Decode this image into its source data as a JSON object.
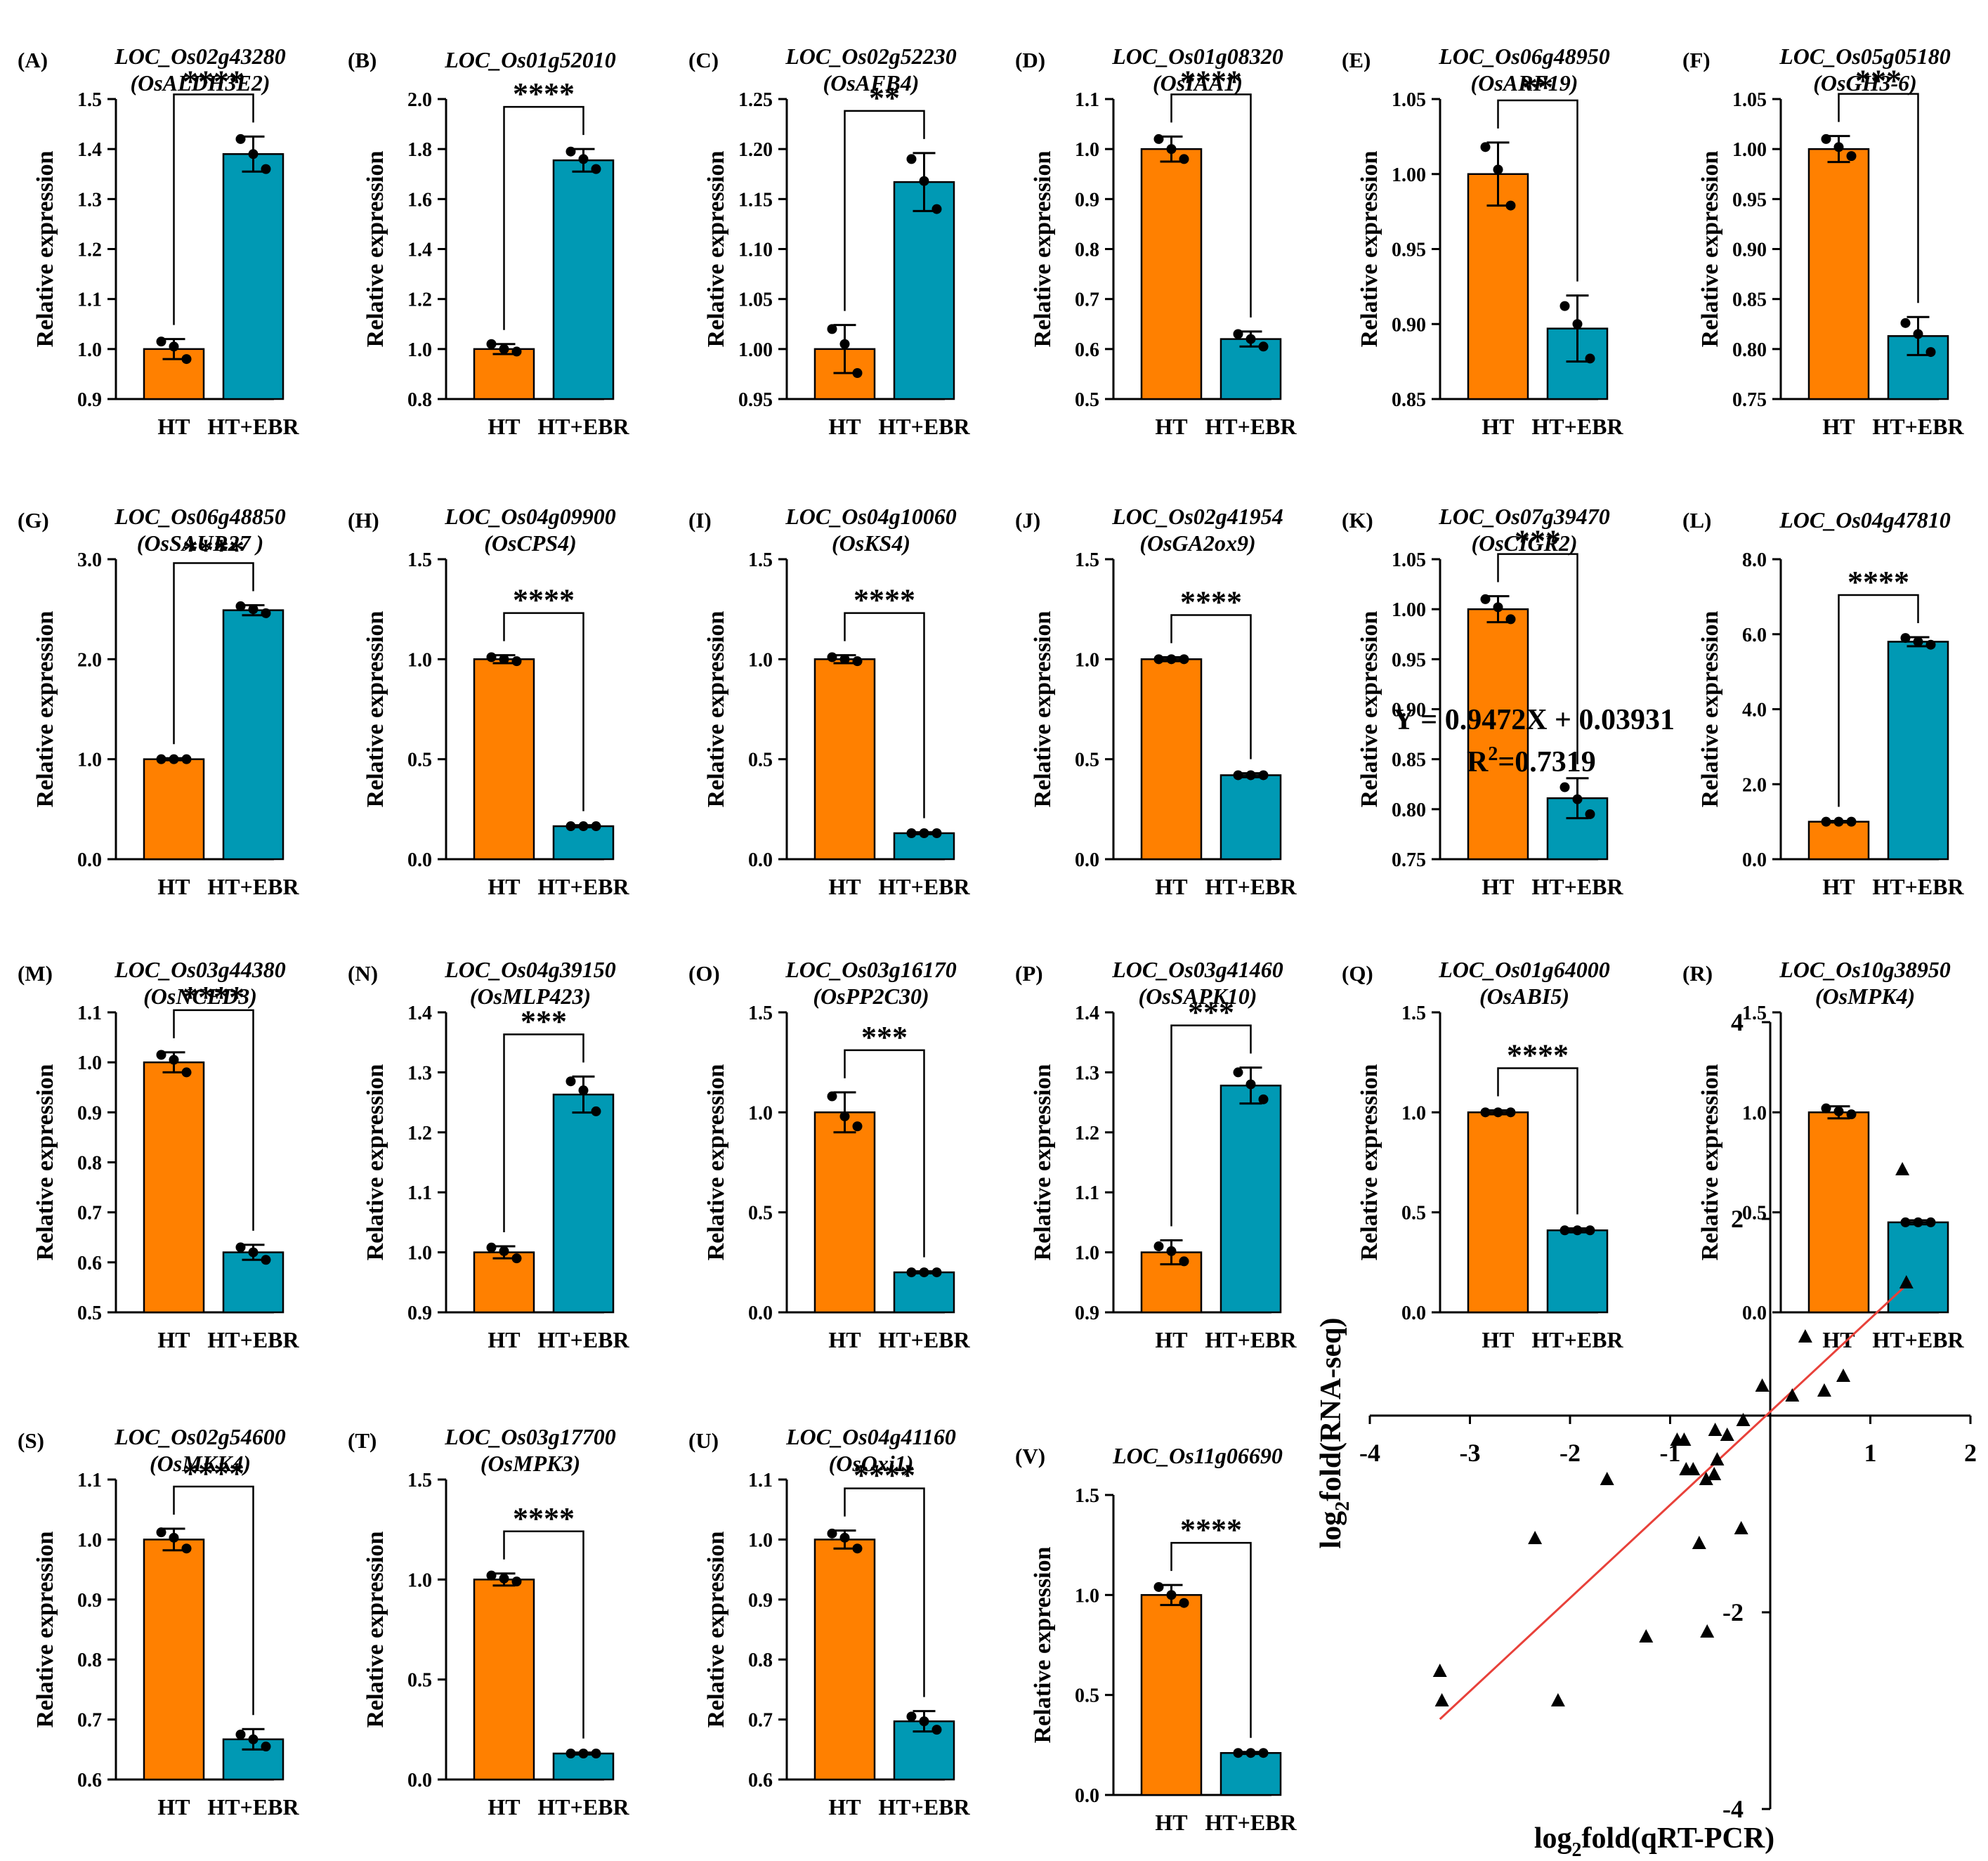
{
  "colors": {
    "ht": "#FF8000",
    "ebr": "#0099B4",
    "fit_line": "#E8413A",
    "axis": "#000000"
  },
  "y_axis_label": "Relative expression",
  "categories": [
    "HT",
    "HT+EBR"
  ],
  "chart_data": [
    {
      "type": "bar",
      "panel": "(A)",
      "gene": "LOC_Os02g43280",
      "alias": "(OsALDH3E2)",
      "categories": [
        "HT",
        "HT+EBR"
      ],
      "values": [
        1.0,
        1.39
      ],
      "errors": [
        0.02,
        0.035
      ],
      "points": [
        [
          1.015,
          1.005,
          0.98
        ],
        [
          1.42,
          1.39,
          1.36
        ]
      ],
      "ylim": [
        0.9,
        1.5
      ],
      "yticks": [
        0.9,
        1.0,
        1.1,
        1.2,
        1.3,
        1.4,
        1.5
      ],
      "tick_labels": [
        "0.9",
        "1.0",
        "1.1",
        "1.2",
        "1.3",
        "1.4",
        "1.5"
      ],
      "significance": "****"
    },
    {
      "type": "bar",
      "panel": "(B)",
      "gene": "LOC_Os01g52010",
      "alias": "",
      "categories": [
        "HT",
        "HT+EBR"
      ],
      "values": [
        1.0,
        1.755
      ],
      "errors": [
        0.02,
        0.045
      ],
      "points": [
        [
          1.02,
          1.0,
          0.99
        ],
        [
          1.79,
          1.76,
          1.72
        ]
      ],
      "ylim": [
        0.8,
        2.0
      ],
      "yticks": [
        0.8,
        1.0,
        1.2,
        1.4,
        1.6,
        1.8,
        2.0
      ],
      "tick_labels": [
        "0.8",
        "1.0",
        "1.2",
        "1.4",
        "1.6",
        "1.8",
        "2.0"
      ],
      "significance": "****"
    },
    {
      "type": "bar",
      "panel": "(C)",
      "gene": "LOC_Os02g52230",
      "alias": "(OsAFB4)",
      "categories": [
        "HT",
        "HT+EBR"
      ],
      "values": [
        1.0,
        1.167
      ],
      "errors": [
        0.024,
        0.029
      ],
      "points": [
        [
          1.02,
          1.005,
          0.976
        ],
        [
          1.19,
          1.168,
          1.14
        ]
      ],
      "ylim": [
        0.95,
        1.25
      ],
      "yticks": [
        0.95,
        1.0,
        1.05,
        1.1,
        1.15,
        1.2,
        1.25
      ],
      "tick_labels": [
        "0.95",
        "1.00",
        "1.05",
        "1.10",
        "1.15",
        "1.20",
        "1.25"
      ],
      "significance": "**"
    },
    {
      "type": "bar",
      "panel": "(D)",
      "gene": "LOC_Os01g08320",
      "alias": "(OsIAA1)",
      "categories": [
        "HT",
        "HT+EBR"
      ],
      "values": [
        1.0,
        0.62
      ],
      "errors": [
        0.025,
        0.015
      ],
      "points": [
        [
          1.02,
          1.0,
          0.98
        ],
        [
          0.63,
          0.62,
          0.605
        ]
      ],
      "ylim": [
        0.5,
        1.1
      ],
      "yticks": [
        0.5,
        0.6,
        0.7,
        0.8,
        0.9,
        1.0,
        1.1
      ],
      "tick_labels": [
        "0.5",
        "0.6",
        "0.7",
        "0.8",
        "0.9",
        "1.0",
        "1.1"
      ],
      "significance": "****"
    },
    {
      "type": "bar",
      "panel": "(E)",
      "gene": "LOC_Os06g48950",
      "alias": "(OsARF19)",
      "categories": [
        "HT",
        "HT+EBR"
      ],
      "values": [
        1.0,
        0.897
      ],
      "errors": [
        0.021,
        0.022
      ],
      "points": [
        [
          1.018,
          1.003,
          0.979
        ],
        [
          0.912,
          0.9,
          0.877
        ]
      ],
      "ylim": [
        0.85,
        1.05
      ],
      "yticks": [
        0.85,
        0.9,
        0.95,
        1.0,
        1.05
      ],
      "tick_labels": [
        "0.85",
        "0.90",
        "0.95",
        "1.00",
        "1.05"
      ],
      "significance": "**"
    },
    {
      "type": "bar",
      "panel": "(F)",
      "gene": "LOC_Os05g05180",
      "alias": "(OsGH3-6)",
      "categories": [
        "HT",
        "HT+EBR"
      ],
      "values": [
        1.0,
        0.813
      ],
      "errors": [
        0.013,
        0.019
      ],
      "points": [
        [
          1.01,
          1.002,
          0.993
        ],
        [
          0.826,
          0.815,
          0.797
        ]
      ],
      "ylim": [
        0.75,
        1.05
      ],
      "yticks": [
        0.75,
        0.8,
        0.85,
        0.9,
        0.95,
        1.0,
        1.05
      ],
      "tick_labels": [
        "0.75",
        "0.80",
        "0.85",
        "0.90",
        "0.95",
        "1.00",
        "1.05"
      ],
      "significance": "***"
    },
    {
      "type": "bar",
      "panel": "(G)",
      "gene": "LOC_Os06g48850",
      "alias": "(OsSAUR27 )",
      "categories": [
        "HT",
        "HT+EBR"
      ],
      "values": [
        1.0,
        2.49
      ],
      "errors": [
        0.01,
        0.05
      ],
      "points": [
        [
          1.0,
          1.0,
          1.0
        ],
        [
          2.53,
          2.5,
          2.46
        ]
      ],
      "ylim": [
        0.0,
        3.0
      ],
      "yticks": [
        0.0,
        1.0,
        2.0,
        3.0
      ],
      "tick_labels": [
        "0.0",
        "1.0",
        "2.0",
        "3.0"
      ],
      "significance": "****"
    },
    {
      "type": "bar",
      "panel": "(H)",
      "gene": "LOC_Os04g09900",
      "alias": "(OsCPS4)",
      "categories": [
        "HT",
        "HT+EBR"
      ],
      "values": [
        1.0,
        0.165
      ],
      "errors": [
        0.02,
        0.005
      ],
      "points": [
        [
          1.01,
          1.0,
          0.99
        ],
        [
          0.165,
          0.165,
          0.165
        ]
      ],
      "ylim": [
        0.0,
        1.5
      ],
      "yticks": [
        0.0,
        0.5,
        1.0,
        1.5
      ],
      "tick_labels": [
        "0.0",
        "0.5",
        "1.0",
        "1.5"
      ],
      "significance": "****"
    },
    {
      "type": "bar",
      "panel": "(I)",
      "gene": "LOC_Os04g10060",
      "alias": "(OsKS4)",
      "categories": [
        "HT",
        "HT+EBR"
      ],
      "values": [
        1.0,
        0.13
      ],
      "errors": [
        0.02,
        0.005
      ],
      "points": [
        [
          1.01,
          1.0,
          0.99
        ],
        [
          0.13,
          0.13,
          0.13
        ]
      ],
      "ylim": [
        0.0,
        1.5
      ],
      "yticks": [
        0.0,
        0.5,
        1.0,
        1.5
      ],
      "tick_labels": [
        "0.0",
        "0.5",
        "1.0",
        "1.5"
      ],
      "significance": "****"
    },
    {
      "type": "bar",
      "panel": "(J)",
      "gene": "LOC_Os02g41954",
      "alias": "(OsGA2ox9)",
      "categories": [
        "HT",
        "HT+EBR"
      ],
      "values": [
        1.0,
        0.42
      ],
      "errors": [
        0.01,
        0.01
      ],
      "points": [
        [
          1.0,
          1.0,
          1.0
        ],
        [
          0.42,
          0.42,
          0.42
        ]
      ],
      "ylim": [
        0.0,
        1.5
      ],
      "yticks": [
        0.0,
        0.5,
        1.0,
        1.5
      ],
      "tick_labels": [
        "0.0",
        "0.5",
        "1.0",
        "1.5"
      ],
      "significance": "****"
    },
    {
      "type": "bar",
      "panel": "(K)",
      "gene": "LOC_Os07g39470",
      "alias": "(OsCIGR2)",
      "categories": [
        "HT",
        "HT+EBR"
      ],
      "values": [
        1.0,
        0.811
      ],
      "errors": [
        0.013,
        0.02
      ],
      "points": [
        [
          1.01,
          1.002,
          0.99
        ],
        [
          0.822,
          0.81,
          0.795
        ]
      ],
      "ylim": [
        0.75,
        1.05
      ],
      "yticks": [
        0.75,
        0.8,
        0.85,
        0.9,
        0.95,
        1.0,
        1.05
      ],
      "tick_labels": [
        "0.75",
        "0.80",
        "0.85",
        "0.90",
        "0.95",
        "1.00",
        "1.05"
      ],
      "significance": "***"
    },
    {
      "type": "bar",
      "panel": "(L)",
      "gene": "LOC_Os04g47810",
      "alias": "",
      "categories": [
        "HT",
        "HT+EBR"
      ],
      "values": [
        1.0,
        5.8
      ],
      "errors": [
        0.02,
        0.12
      ],
      "points": [
        [
          1.0,
          1.0,
          1.0
        ],
        [
          5.9,
          5.8,
          5.72
        ]
      ],
      "ylim": [
        0.0,
        8.0
      ],
      "yticks": [
        0.0,
        2.0,
        4.0,
        6.0,
        8.0
      ],
      "tick_labels": [
        "0.0",
        "2.0",
        "4.0",
        "6.0",
        "8.0"
      ],
      "significance": "****"
    },
    {
      "type": "bar",
      "panel": "(M)",
      "gene": "LOC_Os03g44380",
      "alias": "(OsNCED3)",
      "categories": [
        "HT",
        "HT+EBR"
      ],
      "values": [
        1.0,
        0.62
      ],
      "errors": [
        0.02,
        0.015
      ],
      "points": [
        [
          1.015,
          1.005,
          0.98
        ],
        [
          0.63,
          0.62,
          0.605
        ]
      ],
      "ylim": [
        0.5,
        1.1
      ],
      "yticks": [
        0.5,
        0.6,
        0.7,
        0.8,
        0.9,
        1.0,
        1.1
      ],
      "tick_labels": [
        "0.5",
        "0.6",
        "0.7",
        "0.8",
        "0.9",
        "1.0",
        "1.1"
      ],
      "significance": "****"
    },
    {
      "type": "bar",
      "panel": "(N)",
      "gene": "LOC_Os04g39150",
      "alias": "(OsMLP423)",
      "categories": [
        "HT",
        "HT+EBR"
      ],
      "values": [
        1.0,
        1.263
      ],
      "errors": [
        0.01,
        0.03
      ],
      "points": [
        [
          1.008,
          1.002,
          0.99
        ],
        [
          1.285,
          1.27,
          1.235
        ]
      ],
      "ylim": [
        0.9,
        1.4
      ],
      "yticks": [
        0.9,
        1.0,
        1.1,
        1.2,
        1.3,
        1.4
      ],
      "tick_labels": [
        "0.9",
        "1.0",
        "1.1",
        "1.2",
        "1.3",
        "1.4"
      ],
      "significance": "***"
    },
    {
      "type": "bar",
      "panel": "(O)",
      "gene": "LOC_Os03g16170",
      "alias": "(OsPP2C30)",
      "categories": [
        "HT",
        "HT+EBR"
      ],
      "values": [
        1.0,
        0.2
      ],
      "errors": [
        0.1,
        0.005
      ],
      "points": [
        [
          1.08,
          0.98,
          0.93
        ],
        [
          0.2,
          0.2,
          0.2
        ]
      ],
      "ylim": [
        0.0,
        1.5
      ],
      "yticks": [
        0.0,
        0.5,
        1.0,
        1.5
      ],
      "tick_labels": [
        "0.0",
        "0.5",
        "1.0",
        "1.5"
      ],
      "significance": "***"
    },
    {
      "type": "bar",
      "panel": "(P)",
      "gene": "LOC_Os03g41460",
      "alias": "(OsSAPK10)",
      "categories": [
        "HT",
        "HT+EBR"
      ],
      "values": [
        1.0,
        1.278
      ],
      "errors": [
        0.02,
        0.03
      ],
      "points": [
        [
          1.01,
          1.002,
          0.985
        ],
        [
          1.3,
          1.28,
          1.255
        ]
      ],
      "ylim": [
        0.9,
        1.4
      ],
      "yticks": [
        0.9,
        1.0,
        1.1,
        1.2,
        1.3,
        1.4
      ],
      "tick_labels": [
        "0.9",
        "1.0",
        "1.1",
        "1.2",
        "1.3",
        "1.4"
      ],
      "significance": "***"
    },
    {
      "type": "bar",
      "panel": "(Q)",
      "gene": "LOC_Os01g64000",
      "alias": "(OsABI5)",
      "categories": [
        "HT",
        "HT+EBR"
      ],
      "values": [
        1.0,
        0.41
      ],
      "errors": [
        0.01,
        0.01
      ],
      "points": [
        [
          1.0,
          1.0,
          1.0
        ],
        [
          0.41,
          0.41,
          0.41
        ]
      ],
      "ylim": [
        0.0,
        1.5
      ],
      "yticks": [
        0.0,
        0.5,
        1.0,
        1.5
      ],
      "tick_labels": [
        "0.0",
        "0.5",
        "1.0",
        "1.5"
      ],
      "significance": "****"
    },
    {
      "type": "bar",
      "panel": "(R)",
      "gene": "LOC_Os10g38950",
      "alias": "(OsMPK4)",
      "categories": [
        "HT",
        "HT+EBR"
      ],
      "values": [
        1.0,
        0.45
      ],
      "errors": [
        0.03,
        0.01
      ],
      "points": [
        [
          1.02,
          1.005,
          0.99
        ],
        [
          0.45,
          0.45,
          0.45
        ]
      ],
      "ylim": [
        0.0,
        1.5
      ],
      "yticks": [
        0.0,
        0.5,
        1.0,
        1.5
      ],
      "tick_labels": [
        "0.0",
        "0.5",
        "1.0",
        "1.5"
      ],
      "significance": ""
    },
    {
      "type": "bar",
      "panel": "(S)",
      "gene": "LOC_Os02g54600",
      "alias": "(OsMKK4)",
      "categories": [
        "HT",
        "HT+EBR"
      ],
      "values": [
        1.0,
        0.667
      ],
      "errors": [
        0.018,
        0.017
      ],
      "points": [
        [
          1.012,
          1.003,
          0.985
        ],
        [
          0.675,
          0.667,
          0.655
        ]
      ],
      "ylim": [
        0.6,
        1.1
      ],
      "yticks": [
        0.6,
        0.7,
        0.8,
        0.9,
        1.0,
        1.1
      ],
      "tick_labels": [
        "0.6",
        "0.7",
        "0.8",
        "0.9",
        "1.0",
        "1.1"
      ],
      "significance": "****"
    },
    {
      "type": "bar",
      "panel": "(T)",
      "gene": "LOC_Os03g17700",
      "alias": "(OsMPK3)",
      "categories": [
        "HT",
        "HT+EBR"
      ],
      "values": [
        1.0,
        0.13
      ],
      "errors": [
        0.03,
        0.005
      ],
      "points": [
        [
          1.02,
          1.005,
          0.99
        ],
        [
          0.13,
          0.13,
          0.13
        ]
      ],
      "ylim": [
        0.0,
        1.5
      ],
      "yticks": [
        0.0,
        0.5,
        1.0,
        1.5
      ],
      "tick_labels": [
        "0.0",
        "0.5",
        "1.0",
        "1.5"
      ],
      "significance": "****"
    },
    {
      "type": "bar",
      "panel": "(U)",
      "gene": "LOC_Os04g41160",
      "alias": "(OsOxi1)",
      "categories": [
        "HT",
        "HT+EBR"
      ],
      "values": [
        1.0,
        0.697
      ],
      "errors": [
        0.015,
        0.017
      ],
      "points": [
        [
          1.01,
          1.003,
          0.985
        ],
        [
          0.705,
          0.697,
          0.683
        ]
      ],
      "ylim": [
        0.6,
        1.1
      ],
      "yticks": [
        0.6,
        0.7,
        0.8,
        0.9,
        1.0,
        1.1
      ],
      "tick_labels": [
        "0.6",
        "0.7",
        "0.8",
        "0.9",
        "1.0",
        "1.1"
      ],
      "significance": "****"
    },
    {
      "type": "bar",
      "panel": "(V)",
      "gene": "LOC_Os11g06690",
      "alias": "",
      "categories": [
        "HT",
        "HT+EBR"
      ],
      "values": [
        1.0,
        0.21
      ],
      "errors": [
        0.05,
        0.005
      ],
      "points": [
        [
          1.04,
          1.0,
          0.96
        ],
        [
          0.21,
          0.21,
          0.21
        ]
      ],
      "ylim": [
        0.0,
        1.5
      ],
      "yticks": [
        0.0,
        0.5,
        1.0,
        1.5
      ],
      "tick_labels": [
        "0.0",
        "0.5",
        "1.0",
        "1.5"
      ],
      "significance": "****"
    },
    {
      "type": "scatter",
      "panel": "",
      "equation": "Y = 0.9472X + 0.03931",
      "r2_prefix": "R",
      "r2_sup": "2",
      "r2_suffix": "=0.7319",
      "xlabel_prefix": "log",
      "xlabel_sub": "2",
      "xlabel_suffix": "fold(qRT-PCR)",
      "ylabel_prefix": "log",
      "ylabel_sub": "2",
      "ylabel_suffix": "fold(RNA-seq)",
      "xlim": [
        -4,
        2
      ],
      "ylim": [
        -4,
        4
      ],
      "xticks": [
        -4,
        -3,
        -2,
        -1,
        1,
        2
      ],
      "xtick_labels": [
        "-4",
        "-3",
        "-2",
        "-1",
        "1",
        "2"
      ],
      "yticks": [
        -4,
        -2,
        2,
        4
      ],
      "ytick_labels": [
        "-4",
        "-2",
        "2",
        "4"
      ],
      "slope": 0.9472,
      "intercept": 0.03931,
      "fit_x": [
        -3.3,
        1.4
      ],
      "x": [
        -3.3,
        -3.28,
        -2.12,
        -2.35,
        -1.63,
        -1.24,
        -0.93,
        -0.86,
        -0.84,
        -0.77,
        -0.71,
        -0.64,
        -0.56,
        -0.63,
        -0.55,
        -0.43,
        -0.29,
        -0.27,
        -0.08,
        -0.53,
        0.22,
        0.35,
        0.54,
        0.73,
        1.32,
        1.36
      ],
      "y": [
        -2.6,
        -2.9,
        -2.9,
        -1.25,
        -0.65,
        -2.25,
        -0.25,
        -0.25,
        -0.55,
        -0.55,
        -1.3,
        -0.65,
        -0.6,
        -2.2,
        -0.15,
        -0.2,
        -1.15,
        -0.05,
        0.3,
        -0.45,
        0.2,
        0.8,
        0.25,
        0.4,
        2.5,
        1.35
      ]
    }
  ]
}
